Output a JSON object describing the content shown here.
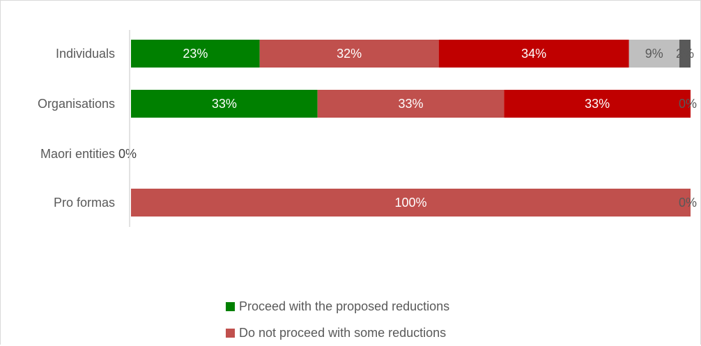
{
  "chart_data": {
    "type": "bar",
    "orientation": "horizontal",
    "stacked": "percent",
    "categories": [
      "Individuals",
      "Organisations",
      "Maori entities",
      "Pro formas"
    ],
    "series": [
      {
        "name": "Proceed with the proposed reductions",
        "color": "#008000",
        "values": [
          23,
          33,
          0,
          0
        ],
        "labels": [
          "23%",
          "33%",
          "0%",
          "0%"
        ]
      },
      {
        "name": "Do not proceed with some reductions",
        "color": "#c0504d",
        "values": [
          32,
          33,
          0,
          100
        ],
        "labels": [
          "32%",
          "33%",
          "0%",
          "100%"
        ]
      },
      {
        "color": "#c00000",
        "values": [
          34,
          33,
          0,
          0
        ],
        "labels": [
          "34%",
          "33%",
          "0%",
          "0%"
        ]
      },
      {
        "color": "#bfbfbf",
        "values": [
          9,
          0,
          0,
          0
        ],
        "labels": [
          "9%",
          "0%",
          "0%",
          "0%"
        ]
      },
      {
        "color": "#595959",
        "values": [
          2,
          0,
          0,
          0
        ],
        "labels": [
          "2%",
          "0%",
          "0%",
          "0%"
        ]
      }
    ],
    "xlim": [
      0,
      100
    ],
    "grid": false,
    "legend_position": "bottom"
  }
}
